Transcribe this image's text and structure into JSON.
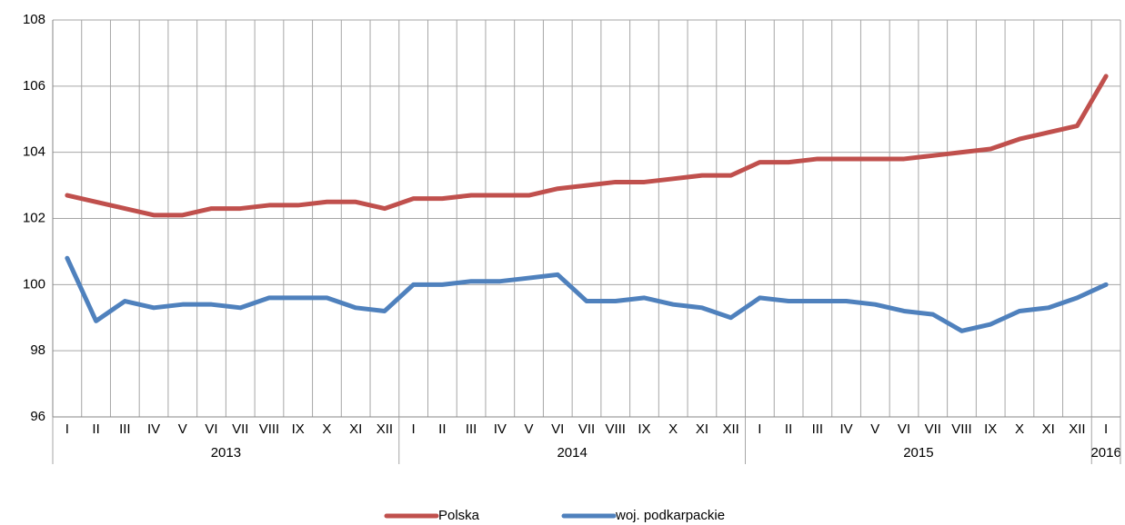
{
  "chart_data": {
    "type": "line",
    "categories": [
      "I",
      "II",
      "III",
      "IV",
      "V",
      "VI",
      "VII",
      "VIII",
      "IX",
      "X",
      "XI",
      "XII",
      "I",
      "II",
      "III",
      "IV",
      "V",
      "VI",
      "VII",
      "VIII",
      "IX",
      "X",
      "XI",
      "XII",
      "I",
      "II",
      "III",
      "IV",
      "V",
      "VI",
      "VII",
      "VIII",
      "IX",
      "X",
      "XI",
      "XII",
      "I"
    ],
    "category_groups": [
      {
        "label": "2013",
        "size": 12
      },
      {
        "label": "2014",
        "size": 12
      },
      {
        "label": "2015",
        "size": 12
      },
      {
        "label": "2016",
        "size": 1
      }
    ],
    "series": [
      {
        "name": "Polska",
        "color": "#c0504d",
        "values": [
          102.7,
          102.5,
          102.3,
          102.1,
          102.1,
          102.3,
          102.3,
          102.4,
          102.4,
          102.5,
          102.5,
          102.3,
          102.6,
          102.6,
          102.7,
          102.7,
          102.7,
          102.9,
          103.0,
          103.1,
          103.1,
          103.2,
          103.3,
          103.3,
          103.7,
          103.7,
          103.8,
          103.8,
          103.8,
          103.8,
          103.9,
          104.0,
          104.1,
          104.4,
          104.6,
          104.8,
          106.3
        ]
      },
      {
        "name": "woj. podkarpackie",
        "color": "#4f81bd",
        "values": [
          100.8,
          98.9,
          99.5,
          99.3,
          99.4,
          99.4,
          99.3,
          99.6,
          99.6,
          99.6,
          99.3,
          99.2,
          100.0,
          100.0,
          100.1,
          100.1,
          100.2,
          100.3,
          99.5,
          99.5,
          99.6,
          99.4,
          99.3,
          99.0,
          99.6,
          99.5,
          99.5,
          99.5,
          99.4,
          99.2,
          99.1,
          98.6,
          98.8,
          99.2,
          99.3,
          99.6,
          100.0
        ]
      }
    ],
    "ylim": [
      96,
      108
    ],
    "yticks": [
      96,
      98,
      100,
      102,
      104,
      106,
      108
    ],
    "grid": true,
    "legend": "bottom"
  }
}
